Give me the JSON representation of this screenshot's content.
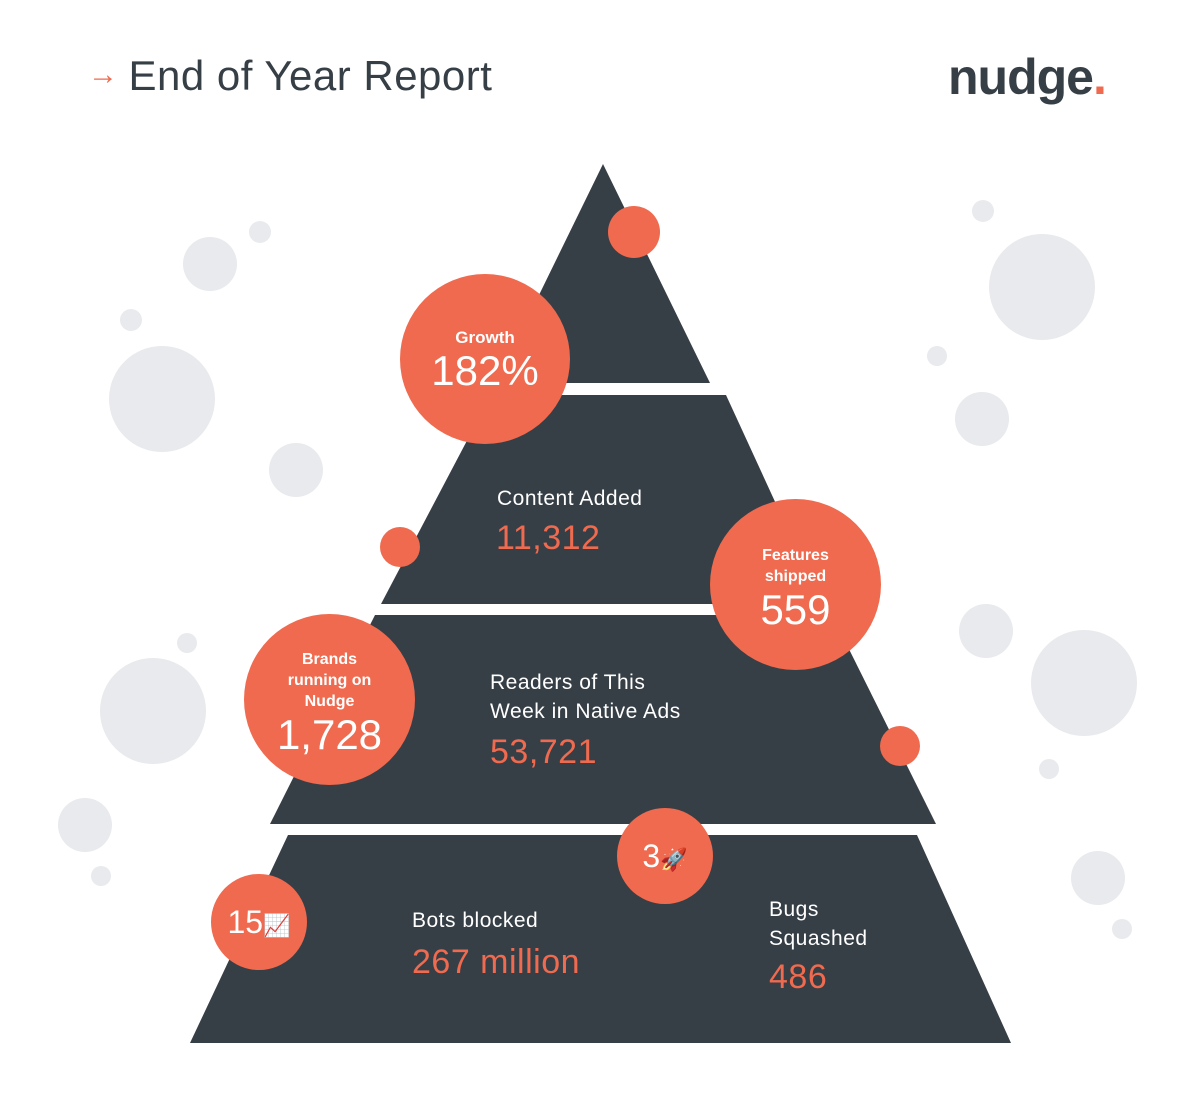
{
  "header": {
    "arrow": "→",
    "title": "End of Year Report"
  },
  "logo": {
    "text": "nudge",
    "dot": "."
  },
  "colors": {
    "accent": "#ef6a4e",
    "dark": "#363f46",
    "bubble": "#e8eaed"
  },
  "stats": {
    "growth": {
      "label": "Growth",
      "value": "182%"
    },
    "content_added": {
      "label": "Content Added",
      "value": "11,312"
    },
    "features_shipped": {
      "label": "Features\nshipped",
      "value": "559"
    },
    "brands": {
      "label": "Brands\nrunning on\nNudge",
      "value": "1,728"
    },
    "readers": {
      "label": "Readers of This\nWeek in Native Ads",
      "value": "53,721"
    },
    "rockets": {
      "value": "3",
      "icon": "rocket-icon",
      "glyph": "🚀"
    },
    "charts": {
      "value": "15",
      "icon": "chart-increasing-icon",
      "glyph": "📈"
    },
    "bots": {
      "label": "Bots blocked",
      "value": "267 million"
    },
    "bugs": {
      "label": "Bugs\nSquashed",
      "value": "486"
    }
  }
}
